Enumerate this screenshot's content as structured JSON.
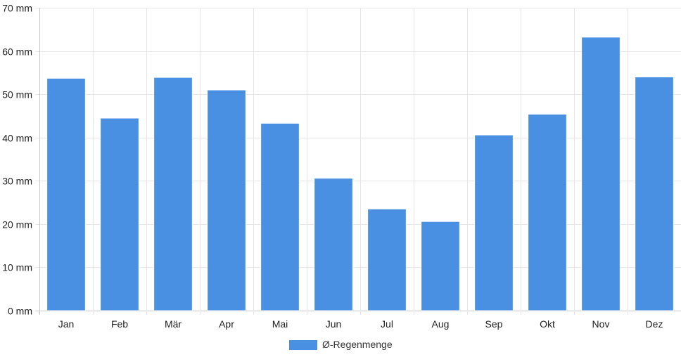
{
  "chart_data": {
    "type": "bar",
    "categories": [
      "Jan",
      "Feb",
      "Mär",
      "Apr",
      "Mai",
      "Jun",
      "Jul",
      "Aug",
      "Sep",
      "Okt",
      "Nov",
      "Dez"
    ],
    "series": [
      {
        "name": "Ø-Regenmenge",
        "values": [
          53.7,
          44.5,
          53.9,
          51.0,
          43.3,
          30.6,
          23.5,
          20.6,
          40.6,
          45.4,
          63.2,
          54.0
        ],
        "color": "#4a90e2"
      }
    ],
    "y_unit": "mm",
    "ylim": [
      0,
      70
    ],
    "y_ticks": [
      0,
      10,
      20,
      30,
      40,
      50,
      60,
      70
    ],
    "y_tick_labels": [
      "0 mm",
      "10 mm",
      "20 mm",
      "30 mm",
      "40 mm",
      "50 mm",
      "60 mm",
      "70 mm"
    ],
    "grid": true,
    "legend_position": "bottom"
  },
  "legend": {
    "label": "Ø-Regenmenge"
  }
}
